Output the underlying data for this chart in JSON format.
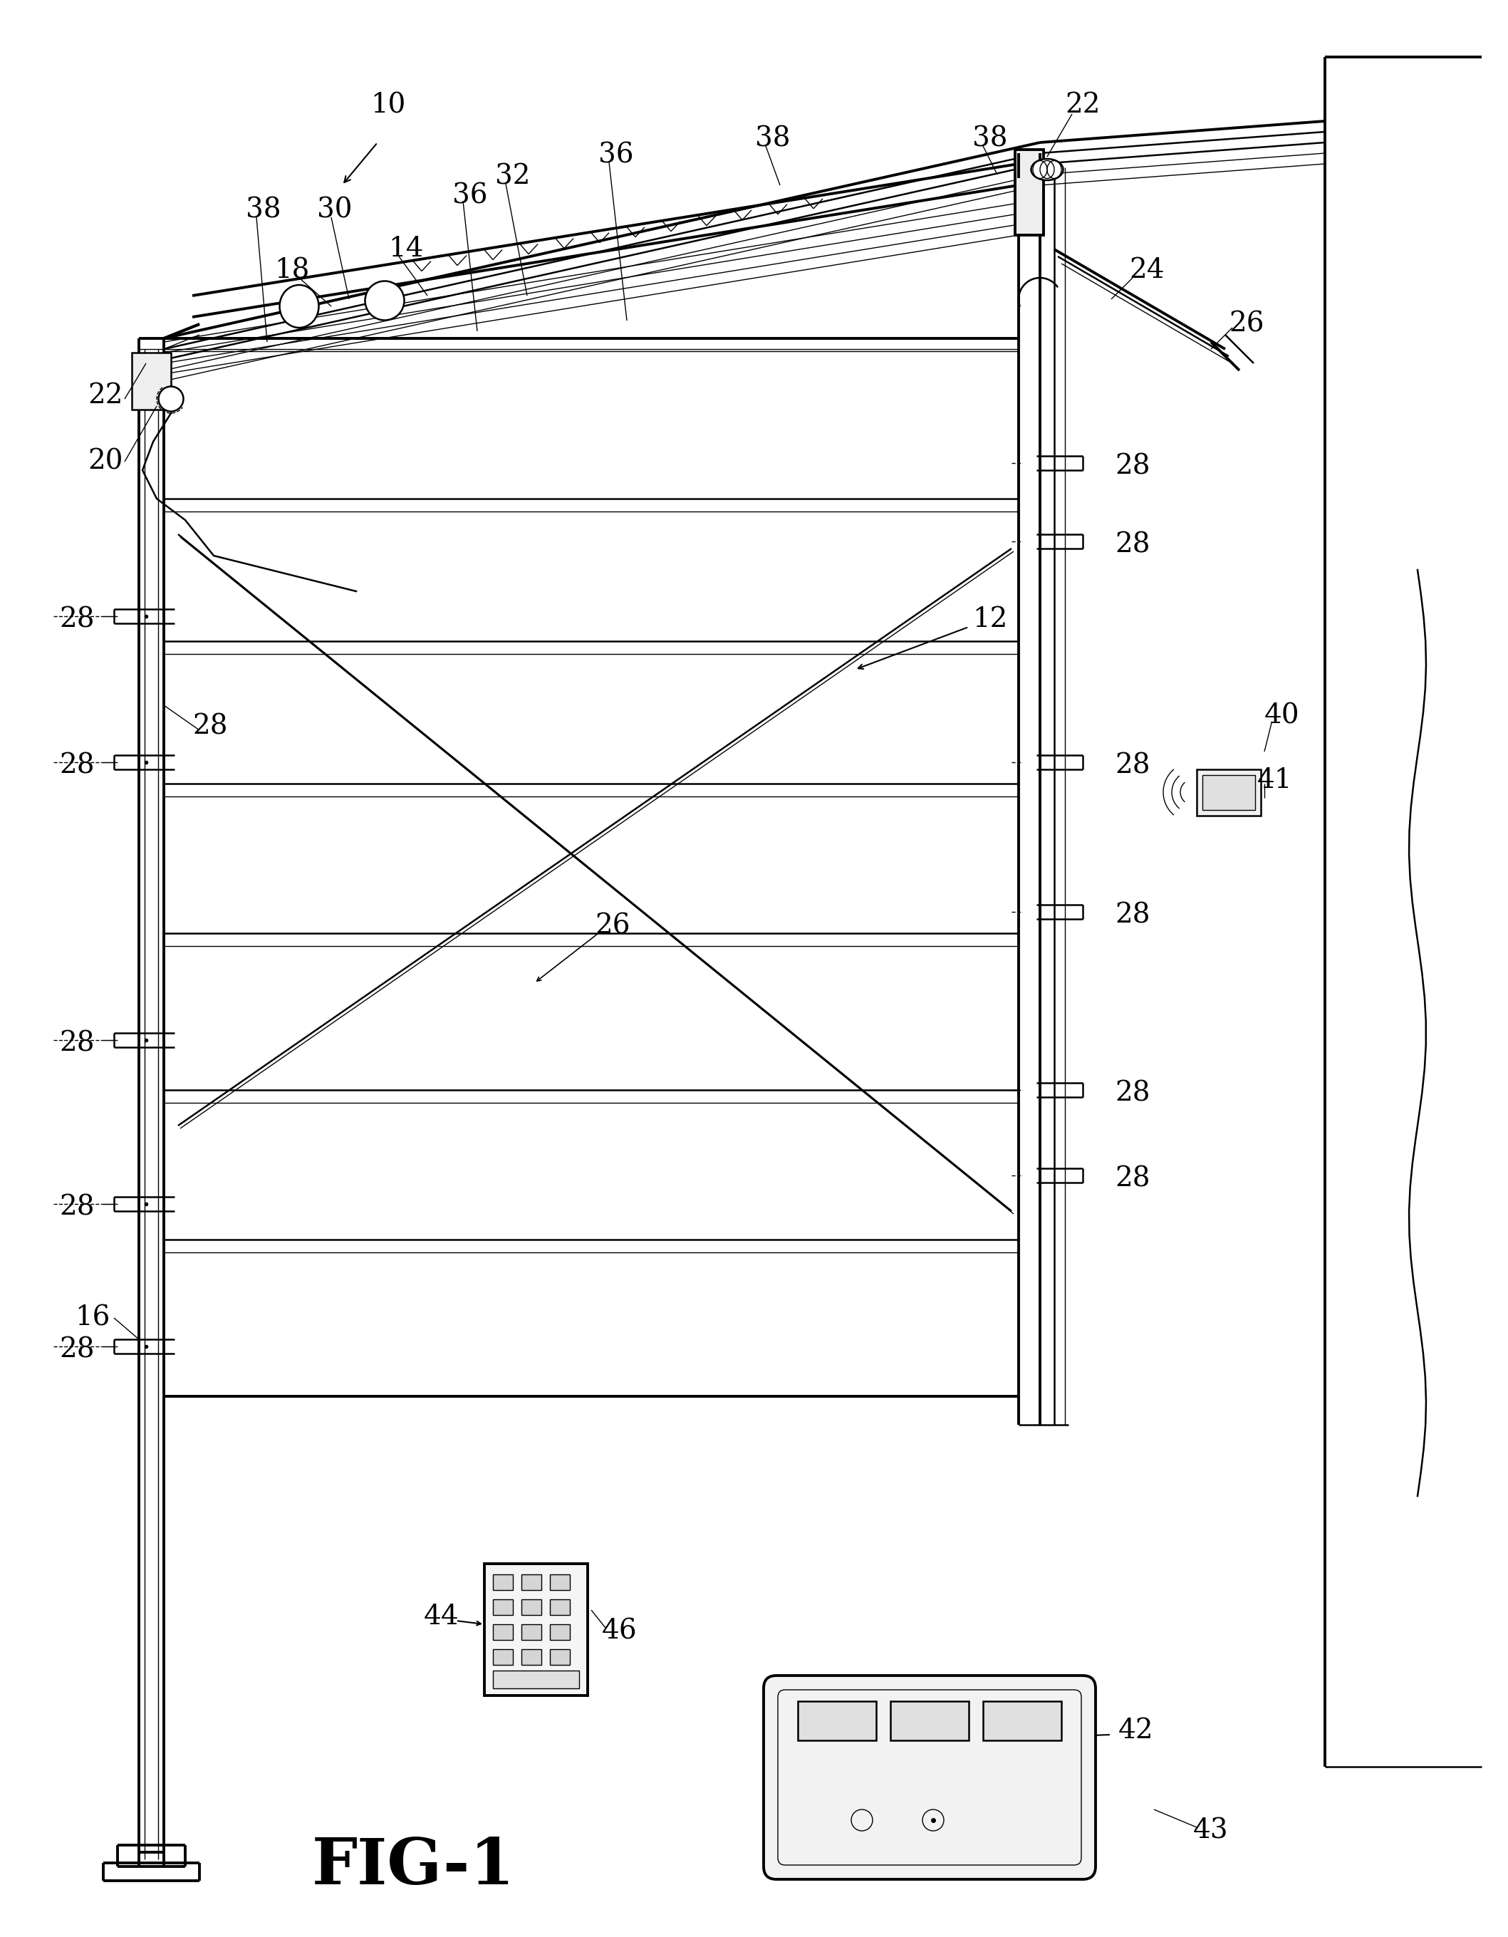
{
  "bg_color": "#ffffff",
  "lw_thick": 2.8,
  "lw_med": 1.8,
  "lw_thin": 1.0,
  "lw_vthin": 0.6,
  "fig_label": "FIG-1",
  "label_fs": 28,
  "fig_label_fs": 65
}
